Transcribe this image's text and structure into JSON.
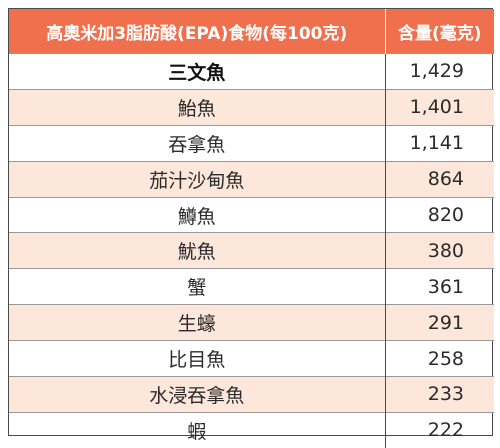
{
  "table": {
    "header_food": "高奧米加3脂肪酸(EPA)食物(每100克)",
    "header_amount": "含量(毫克)",
    "rows": [
      {
        "food": "三文魚",
        "amount": "1,429"
      },
      {
        "food": "鮐魚",
        "amount": "1,401"
      },
      {
        "food": "吞拿魚",
        "amount": "1,141"
      },
      {
        "food": "茄汁沙甸魚",
        "amount": "864"
      },
      {
        "food": "鱒魚",
        "amount": "820"
      },
      {
        "food": "魷魚",
        "amount": "380"
      },
      {
        "food": "蟹",
        "amount": "361"
      },
      {
        "food": "生蠔",
        "amount": "291"
      },
      {
        "food": "比目魚",
        "amount": "258"
      },
      {
        "food": "水浸吞拿魚",
        "amount": "233"
      },
      {
        "food": "蝦",
        "amount": "222"
      }
    ],
    "colors": {
      "header_bg": "#f06f4d",
      "header_text": "#ffffff",
      "alt_row_bg": "#fde6da",
      "border": "#4a4a4a"
    }
  }
}
